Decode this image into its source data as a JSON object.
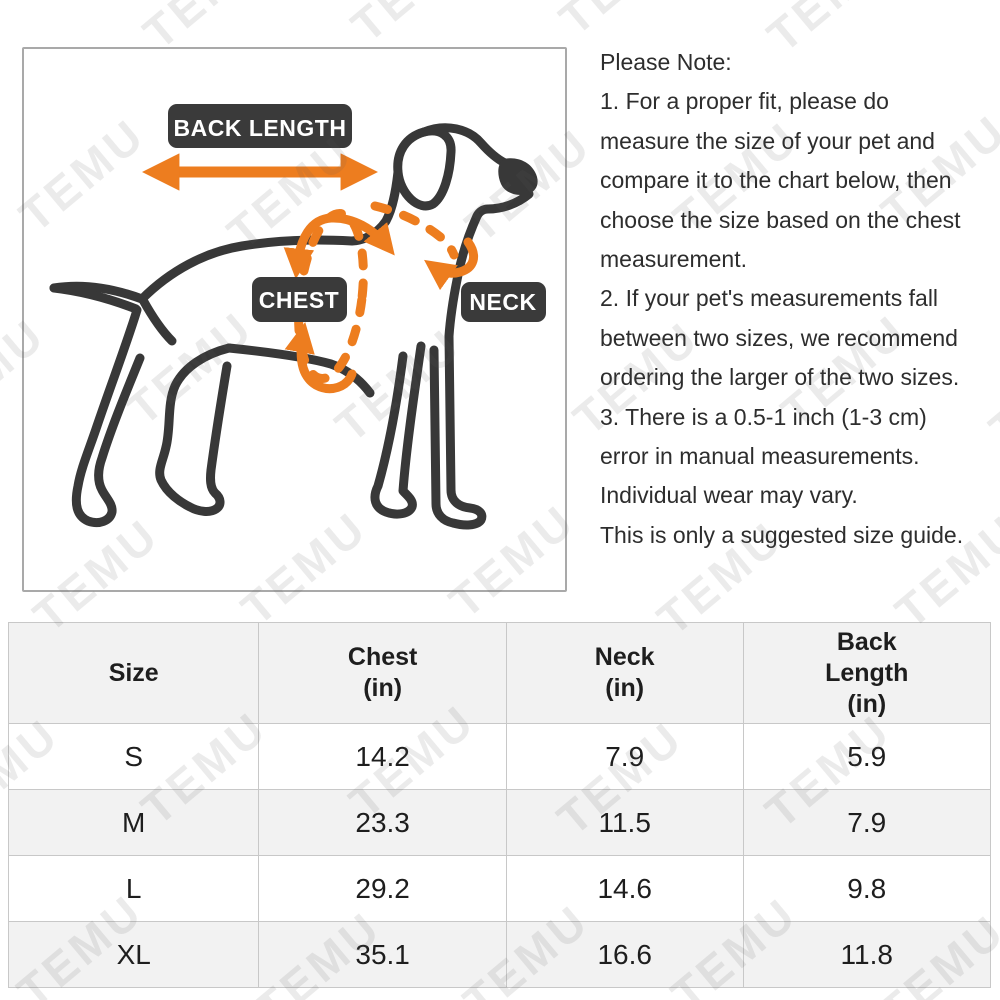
{
  "watermark": {
    "text": "TEMU"
  },
  "diagram": {
    "labels": {
      "back_length": "BACK LENGTH",
      "chest": "CHEST",
      "neck": "NECK"
    },
    "colors": {
      "accent_orange": "#ED7D1F",
      "label_bg": "#3A3A3A",
      "line_dark": "#383838"
    }
  },
  "note": {
    "lines": [
      "Please Note:",
      "1. For a proper fit, please do",
      "measure the size of your pet and",
      "compare it to the chart below, then",
      "choose the size based on the chest",
      "measurement.",
      "2. If your pet's measurements fall",
      "between two sizes, we recommend",
      "ordering the larger of the two sizes.",
      "3. There is a 0.5-1 inch (1-3 cm)",
      "error in manual measurements.",
      "Individual wear may vary.",
      "This is only a suggested size guide."
    ]
  },
  "size_table": {
    "columns": [
      "Size",
      "Chest\n(in)",
      "Neck\n(in)",
      "Back\nLength\n(in)"
    ],
    "rows": [
      {
        "size": "S",
        "chest_in": "14.2",
        "neck_in": "7.9",
        "back_length_in": "5.9"
      },
      {
        "size": "M",
        "chest_in": "23.3",
        "neck_in": "11.5",
        "back_length_in": "7.9"
      },
      {
        "size": "L",
        "chest_in": "29.2",
        "neck_in": "14.6",
        "back_length_in": "9.8"
      },
      {
        "size": "XL",
        "chest_in": "35.1",
        "neck_in": "16.6",
        "back_length_in": "11.8"
      }
    ]
  }
}
